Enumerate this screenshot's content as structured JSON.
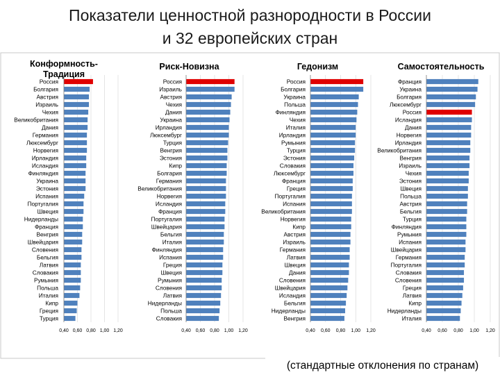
{
  "slide": {
    "title_line1": "Показатели ценностной разнородности в России",
    "title_line2": "и 32 европейских стран",
    "caption": "(стандартные отклонения по странам)"
  },
  "colors": {
    "bar": "#4f81bd",
    "highlight": "#e00000",
    "grid": "#d9d9d9",
    "axis": "#7f7f7f"
  },
  "chart_data": [
    {
      "type": "bar",
      "orientation": "horizontal",
      "title": "Конформность-\nТрадиция",
      "categories": [
        "Россия",
        "Болгария",
        "Австрия",
        "Израиль",
        "Чехия",
        "Великобритания",
        "Дания",
        "Германия",
        "Люксембург",
        "Норвегия",
        "Ирландия",
        "Исландия",
        "Финляндия",
        "Украина",
        "Эстония",
        "Испания",
        "Португалия",
        "Швеция",
        "Нидерланды",
        "Франция",
        "Венгрия",
        "Швейцария",
        "Словения",
        "Бельгия",
        "Латвия",
        "Словакия",
        "Румыния",
        "Польша",
        "Италия",
        "Кипр",
        "Греция",
        "Турция"
      ],
      "values": [
        0.83,
        0.78,
        0.77,
        0.77,
        0.76,
        0.75,
        0.75,
        0.74,
        0.74,
        0.74,
        0.73,
        0.73,
        0.72,
        0.72,
        0.72,
        0.7,
        0.69,
        0.69,
        0.68,
        0.68,
        0.67,
        0.67,
        0.66,
        0.66,
        0.65,
        0.65,
        0.65,
        0.64,
        0.63,
        0.6,
        0.59,
        0.57
      ],
      "highlight": "Россия",
      "tick_labels": [
        "0,40",
        "0,60",
        "0,80",
        "1,00",
        "1,20"
      ],
      "xlim": [
        0.4,
        1.2
      ]
    },
    {
      "type": "bar",
      "orientation": "horizontal",
      "title": "Риск-Новизна",
      "categories": [
        "Россия",
        "Израиль",
        "Австрия",
        "Чехия",
        "Дания",
        "Украина",
        "Ирландия",
        "Люксембург",
        "Турция",
        "Венгрия",
        "Эстония",
        "Кипр",
        "Болгария",
        "Германия",
        "Великобритания",
        "Норвегия",
        "Исландия",
        "Франция",
        "Португалия",
        "Швейцария",
        "Бельгия",
        "Италия",
        "Финляндия",
        "Испания",
        "Греция",
        "Швеция",
        "Румыния",
        "Словения",
        "Латвия",
        "Нидерланды",
        "Польша",
        "Словакия"
      ],
      "values": [
        1.08,
        1.08,
        1.04,
        1.03,
        1.02,
        1.01,
        1.0,
        1.0,
        0.99,
        0.98,
        0.98,
        0.97,
        0.97,
        0.96,
        0.96,
        0.96,
        0.95,
        0.95,
        0.94,
        0.94,
        0.93,
        0.93,
        0.92,
        0.92,
        0.91,
        0.91,
        0.9,
        0.9,
        0.89,
        0.88,
        0.87,
        0.86
      ],
      "highlight": "Россия",
      "tick_labels": [
        "0,40",
        "0,60",
        "0,80",
        "1,00",
        "1,20"
      ],
      "xlim": [
        0.4,
        1.2
      ]
    },
    {
      "type": "bar",
      "orientation": "horizontal",
      "title": "Гедонизм",
      "categories": [
        "Россия",
        "Болгария",
        "Украина",
        "Польша",
        "Финляндия",
        "Чехия",
        "Италия",
        "Ирландия",
        "Румыния",
        "Турция",
        "Эстония",
        "Словакия",
        "Люксембург",
        "Франция",
        "Греция",
        "Португалия",
        "Испания",
        "Великобритания",
        "Норвегия",
        "Кипр",
        "Австрия",
        "Израиль",
        "Германия",
        "Латвия",
        "Швеция",
        "Дания",
        "Словения",
        "Швейцария",
        "Исландия",
        "Бельгия",
        "Нидерланды",
        "Венгрия"
      ],
      "values": [
        1.1,
        1.1,
        1.04,
        1.03,
        1.02,
        1.01,
        1.0,
        1.0,
        0.99,
        0.99,
        0.98,
        0.97,
        0.97,
        0.96,
        0.96,
        0.95,
        0.95,
        0.95,
        0.94,
        0.94,
        0.93,
        0.93,
        0.92,
        0.92,
        0.91,
        0.91,
        0.9,
        0.89,
        0.88,
        0.87,
        0.86,
        0.85
      ],
      "highlight": "Россия",
      "tick_labels": [
        "0,40",
        "0,60",
        "0,80",
        "1,00",
        "1,20"
      ],
      "xlim": [
        0.4,
        1.2
      ]
    },
    {
      "type": "bar",
      "orientation": "horizontal",
      "title": "Самостоятельность",
      "categories": [
        "Франция",
        "Украина",
        "Болгария",
        "Люксембург",
        "Россия",
        "Исландия",
        "Дания",
        "Норвегия",
        "Ирландия",
        "Великобритания",
        "Венгрия",
        "Израиль",
        "Чехия",
        "Эстония",
        "Швеция",
        "Польша",
        "Австрия",
        "Бельгия",
        "Турция",
        "Финляндия",
        "Румыния",
        "Испания",
        "Швейцария",
        "Германия",
        "Португалия",
        "Словакия",
        "Словения",
        "Греция",
        "Латвия",
        "Кипр",
        "Нидерланды",
        "Италия"
      ],
      "values": [
        1.05,
        1.04,
        1.02,
        1.01,
        0.97,
        0.97,
        0.96,
        0.96,
        0.95,
        0.95,
        0.94,
        0.94,
        0.93,
        0.93,
        0.92,
        0.92,
        0.91,
        0.91,
        0.9,
        0.9,
        0.9,
        0.89,
        0.89,
        0.88,
        0.88,
        0.87,
        0.87,
        0.86,
        0.85,
        0.84,
        0.83,
        0.82
      ],
      "highlight": "Россия",
      "tick_labels": [
        "0,40",
        "0,60",
        "0,80",
        "1,00",
        "1,20"
      ],
      "xlim": [
        0.4,
        1.2
      ]
    }
  ]
}
